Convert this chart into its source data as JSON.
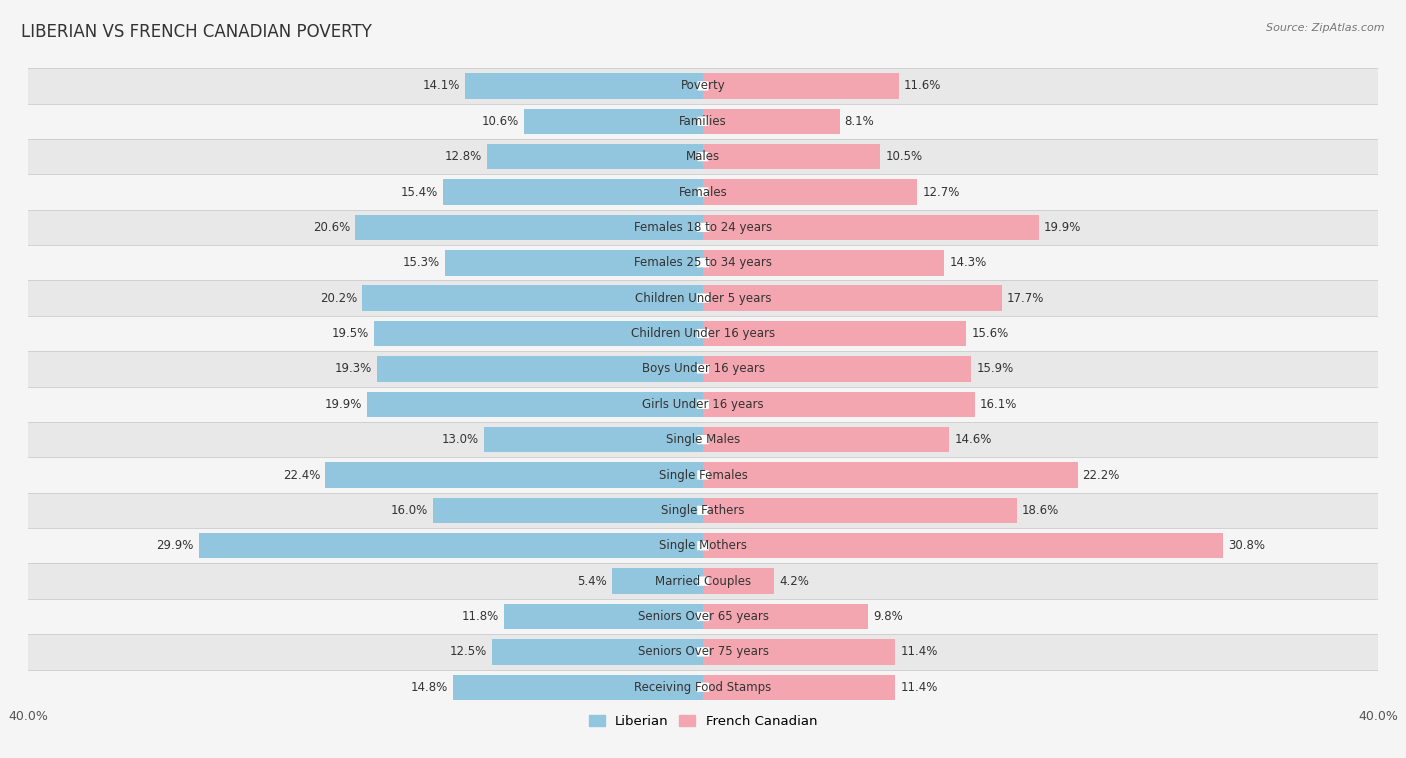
{
  "title": "LIBERIAN VS FRENCH CANADIAN POVERTY",
  "source": "Source: ZipAtlas.com",
  "categories": [
    "Poverty",
    "Families",
    "Males",
    "Females",
    "Females 18 to 24 years",
    "Females 25 to 34 years",
    "Children Under 5 years",
    "Children Under 16 years",
    "Boys Under 16 years",
    "Girls Under 16 years",
    "Single Males",
    "Single Females",
    "Single Fathers",
    "Single Mothers",
    "Married Couples",
    "Seniors Over 65 years",
    "Seniors Over 75 years",
    "Receiving Food Stamps"
  ],
  "liberian": [
    14.1,
    10.6,
    12.8,
    15.4,
    20.6,
    15.3,
    20.2,
    19.5,
    19.3,
    19.9,
    13.0,
    22.4,
    16.0,
    29.9,
    5.4,
    11.8,
    12.5,
    14.8
  ],
  "french_canadian": [
    11.6,
    8.1,
    10.5,
    12.7,
    19.9,
    14.3,
    17.7,
    15.6,
    15.9,
    16.1,
    14.6,
    22.2,
    18.6,
    30.8,
    4.2,
    9.8,
    11.4,
    11.4
  ],
  "liberian_color": "#92c5de",
  "french_canadian_color": "#f4a6b0",
  "row_color_odd": "#e8e8e8",
  "row_color_even": "#f5f5f5",
  "background_color": "#f5f5f5",
  "label_bg_color": "#ffffff",
  "max_val": 40.0,
  "bar_height": 0.72,
  "label_fontsize": 8.5,
  "title_fontsize": 12,
  "value_fontsize": 8.5,
  "legend_liberian": "Liberian",
  "legend_french_canadian": "French Canadian"
}
